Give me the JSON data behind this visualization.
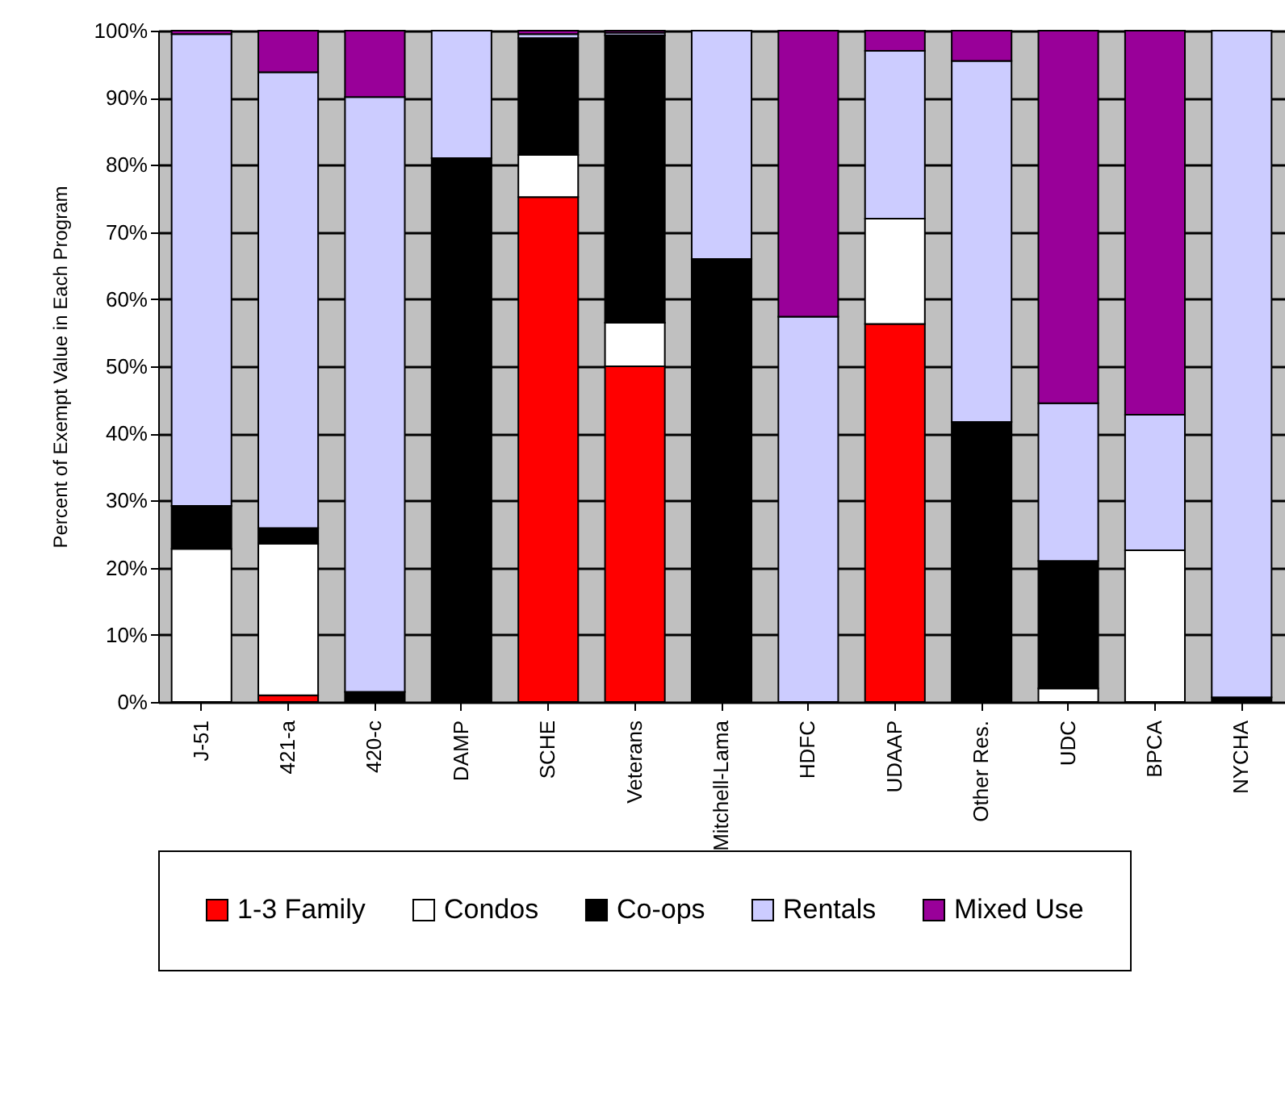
{
  "chart_data": {
    "type": "bar",
    "stacked": true,
    "ylabel": "Percent of Exempt Value in Each Program",
    "categories": [
      "J-51",
      "421-a",
      "420-c",
      "DAMP",
      "SCHE",
      "Veterans",
      "Mitchell-Lama",
      "HDFC",
      "UDAAP",
      "Other Res.",
      "UDC",
      "BPCA",
      "NYCHA"
    ],
    "series": [
      {
        "name": "1-3 Family",
        "color": "#ff0000",
        "values": [
          0,
          1,
          0,
          0,
          75.2,
          50,
          0,
          0,
          56.3,
          0,
          0,
          0,
          0
        ]
      },
      {
        "name": "Condos",
        "color": "#ffffff",
        "values": [
          22.8,
          22.6,
          0,
          0,
          6.3,
          6.5,
          0,
          0,
          15.7,
          0,
          2,
          22.6,
          0
        ]
      },
      {
        "name": "Co-ops",
        "color": "#000000",
        "values": [
          6.4,
          2.3,
          1.5,
          81,
          17.4,
          42.8,
          66,
          0,
          0,
          41.7,
          19,
          0,
          0.7
        ]
      },
      {
        "name": "Rentals",
        "color": "#ccccff",
        "values": [
          70.3,
          67.9,
          88.6,
          19,
          0.6,
          0.4,
          34,
          57.4,
          25,
          53.8,
          23.5,
          20.2,
          99.3
        ]
      },
      {
        "name": "Mixed Use",
        "color": "#990099",
        "values": [
          0.5,
          6.2,
          9.9,
          0,
          0.5,
          0.3,
          0,
          42.6,
          3,
          4.5,
          55.5,
          57.2,
          0
        ]
      }
    ],
    "ylim": [
      0,
      100
    ],
    "yticks": [
      {
        "value": 0,
        "label": "0%"
      },
      {
        "value": 10,
        "label": "10%"
      },
      {
        "value": 20,
        "label": "20%"
      },
      {
        "value": 30,
        "label": "30%"
      },
      {
        "value": 40,
        "label": "40%"
      },
      {
        "value": 50,
        "label": "50%"
      },
      {
        "value": 60,
        "label": "60%"
      },
      {
        "value": 70,
        "label": "70%"
      },
      {
        "value": 80,
        "label": "80%"
      },
      {
        "value": 90,
        "label": "90%"
      },
      {
        "value": 100,
        "label": "100%"
      }
    ],
    "grid": "y",
    "legend": "bottom"
  }
}
